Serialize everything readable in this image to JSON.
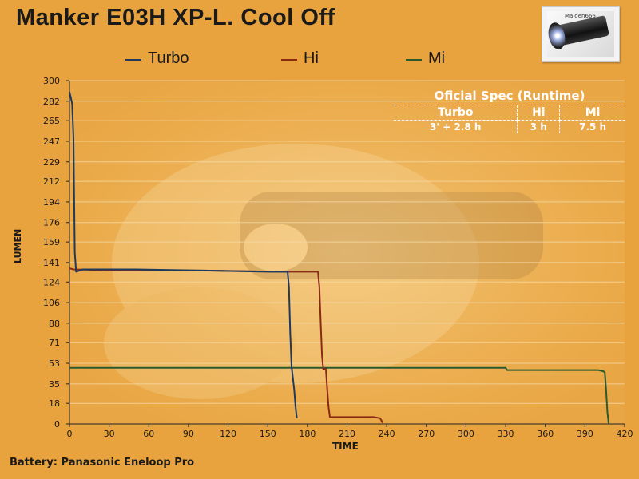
{
  "header": {
    "title": "Manker E03H XP-L. Cool Off"
  },
  "thumbnail": {
    "label": "Maiden666"
  },
  "legend": [
    {
      "name": "Turbo",
      "color": "#1f3a5f"
    },
    {
      "name": "Hi",
      "color": "#8b2a14"
    },
    {
      "name": "Mi",
      "color": "#2a5a2e"
    }
  ],
  "spec": {
    "title": "Oficial Spec (Runtime)",
    "columns": [
      "Turbo",
      "Hi",
      "Mi"
    ],
    "values": [
      "3' + 2.8 h",
      "3 h",
      "7.5 h"
    ]
  },
  "footer": {
    "battery": "Battery: Panasonic Eneloop Pro"
  },
  "chart_data": {
    "type": "line",
    "xlabel": "TIME",
    "ylabel": "LUMEN",
    "xlim": [
      0,
      420
    ],
    "ylim": [
      0,
      300
    ],
    "xticks": [
      0,
      30,
      60,
      90,
      120,
      150,
      180,
      210,
      240,
      270,
      300,
      330,
      360,
      390,
      420
    ],
    "yticks": [
      0,
      18,
      35,
      53,
      71,
      88,
      106,
      124,
      141,
      159,
      176,
      194,
      212,
      229,
      247,
      265,
      282,
      300
    ],
    "grid": true,
    "series": [
      {
        "name": "Turbo",
        "color": "#1f3a5f",
        "points": [
          [
            0,
            290
          ],
          [
            1,
            285
          ],
          [
            2,
            280
          ],
          [
            3,
            250
          ],
          [
            3.5,
            200
          ],
          [
            4,
            150
          ],
          [
            5,
            133
          ],
          [
            10,
            135
          ],
          [
            50,
            135
          ],
          [
            100,
            134
          ],
          [
            150,
            133
          ],
          [
            165,
            133
          ],
          [
            166,
            120
          ],
          [
            167,
            80
          ],
          [
            168,
            50
          ],
          [
            169,
            40
          ],
          [
            170,
            30
          ],
          [
            171,
            15
          ],
          [
            172,
            5
          ]
        ]
      },
      {
        "name": "Hi",
        "color": "#8b2a14",
        "points": [
          [
            0,
            136
          ],
          [
            3,
            135
          ],
          [
            40,
            134
          ],
          [
            100,
            134
          ],
          [
            160,
            133
          ],
          [
            188,
            133
          ],
          [
            189,
            120
          ],
          [
            190,
            90
          ],
          [
            191,
            60
          ],
          [
            192,
            48
          ],
          [
            194,
            48
          ],
          [
            195,
            30
          ],
          [
            196,
            15
          ],
          [
            197,
            6
          ],
          [
            210,
            6
          ],
          [
            230,
            6
          ],
          [
            235,
            5
          ],
          [
            236,
            3
          ],
          [
            237,
            1
          ]
        ]
      },
      {
        "name": "Mi",
        "color": "#2a5a2e",
        "points": [
          [
            0,
            49
          ],
          [
            50,
            49
          ],
          [
            100,
            49
          ],
          [
            150,
            49
          ],
          [
            200,
            49
          ],
          [
            250,
            49
          ],
          [
            300,
            49
          ],
          [
            330,
            49
          ],
          [
            331,
            47
          ],
          [
            360,
            47
          ],
          [
            400,
            47
          ],
          [
            404,
            46
          ],
          [
            405,
            45
          ],
          [
            406,
            30
          ],
          [
            407,
            10
          ],
          [
            408,
            0
          ]
        ]
      }
    ]
  }
}
